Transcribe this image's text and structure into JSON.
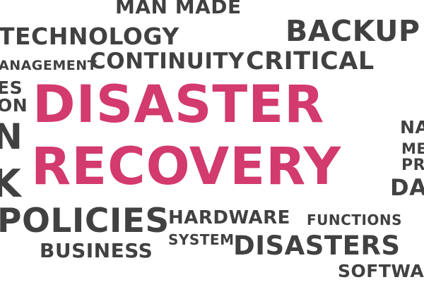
{
  "colors": {
    "accent": "#d33a6e",
    "text": "#414141",
    "background": "#ffffff"
  },
  "cloud": {
    "disaster": "DISASTER",
    "recovery": "RECOVERY",
    "man_made": "MAN MADE",
    "technology": "TECHNOLOGY",
    "backup": "BACKUP",
    "management": "ANAGEMENT",
    "continuity": "CONTINUITY",
    "critical": "CRITICAL",
    "es": "ES",
    "on": "ON",
    "n": "N",
    "k": "K",
    "na": "NA",
    "me": "ME",
    "pr": "PR",
    "da": "DA",
    "policies": "POLICIES",
    "hardware": "HARDWARE",
    "functions": "FUNCTIONS",
    "system": "SYSTEM",
    "disasters": "DISASTERS",
    "business": "BUSINESS",
    "softwa": "SOFTWA"
  }
}
